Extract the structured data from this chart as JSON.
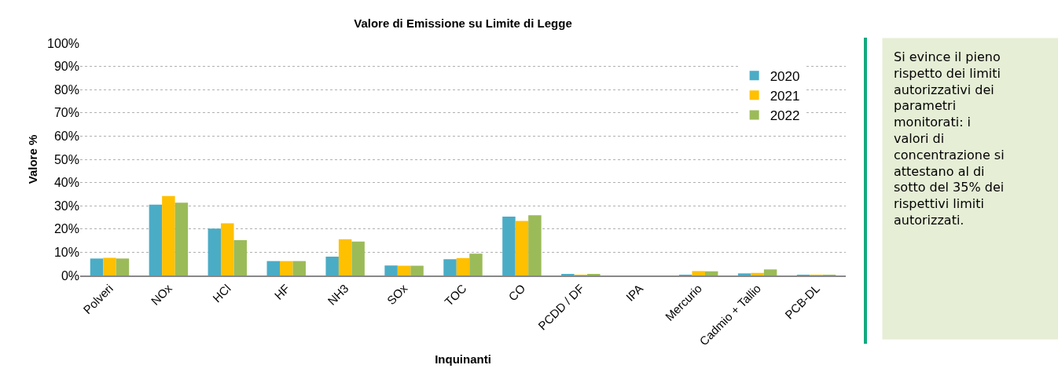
{
  "chart_data": {
    "type": "bar",
    "title": "Valore di Emissione su Limite di Legge",
    "xlabel": "Inquinanti",
    "ylabel": "Valore %",
    "categories": [
      "Polveri",
      "NOx",
      "HCl",
      "HF",
      "NH3",
      "SOx",
      "TOC",
      "CO",
      "PCDD / DF",
      "IPA",
      "Mercurio",
      "Cadmio + Tallio",
      "PCB-DL"
    ],
    "series": [
      {
        "name": "2020",
        "color": "#4bacc6",
        "values": [
          7.3,
          30.5,
          20.2,
          6.2,
          8.1,
          4.3,
          7.0,
          25.3,
          0.5,
          0,
          0.1,
          0.9,
          0.2
        ]
      },
      {
        "name": "2021",
        "color": "#ffc000",
        "values": [
          7.6,
          34.2,
          22.5,
          6.2,
          15.6,
          4.2,
          7.5,
          23.5,
          0.3,
          0,
          1.9,
          1.1,
          0.2
        ]
      },
      {
        "name": "2022",
        "color": "#9bbb59",
        "values": [
          7.3,
          31.3,
          15.2,
          6.2,
          14.6,
          4.2,
          9.4,
          25.9,
          0.4,
          0,
          1.8,
          2.6,
          0.2
        ]
      }
    ],
    "ylim": [
      0,
      100
    ],
    "yticks": [
      {
        "value": 0,
        "label": "0%"
      },
      {
        "value": 10,
        "label": "10%"
      },
      {
        "value": 20,
        "label": "20%"
      },
      {
        "value": 30,
        "label": "30%"
      },
      {
        "value": 40,
        "label": "40%"
      },
      {
        "value": 50,
        "label": "50%"
      },
      {
        "value": 60,
        "label": "60%"
      },
      {
        "value": 70,
        "label": "70%"
      },
      {
        "value": 80,
        "label": "80%"
      },
      {
        "value": 90,
        "label": "90%"
      },
      {
        "value": 100,
        "label": "100%"
      }
    ],
    "grid": "y",
    "legend": "top right",
    "annotations": [
      "Si evince il pieno rispetto dei limiti autorizzativi dei parametri monitorati: i valori di concentrazione si attestano al di sotto del 35% dei rispettivi limiti autorizzati."
    ]
  }
}
